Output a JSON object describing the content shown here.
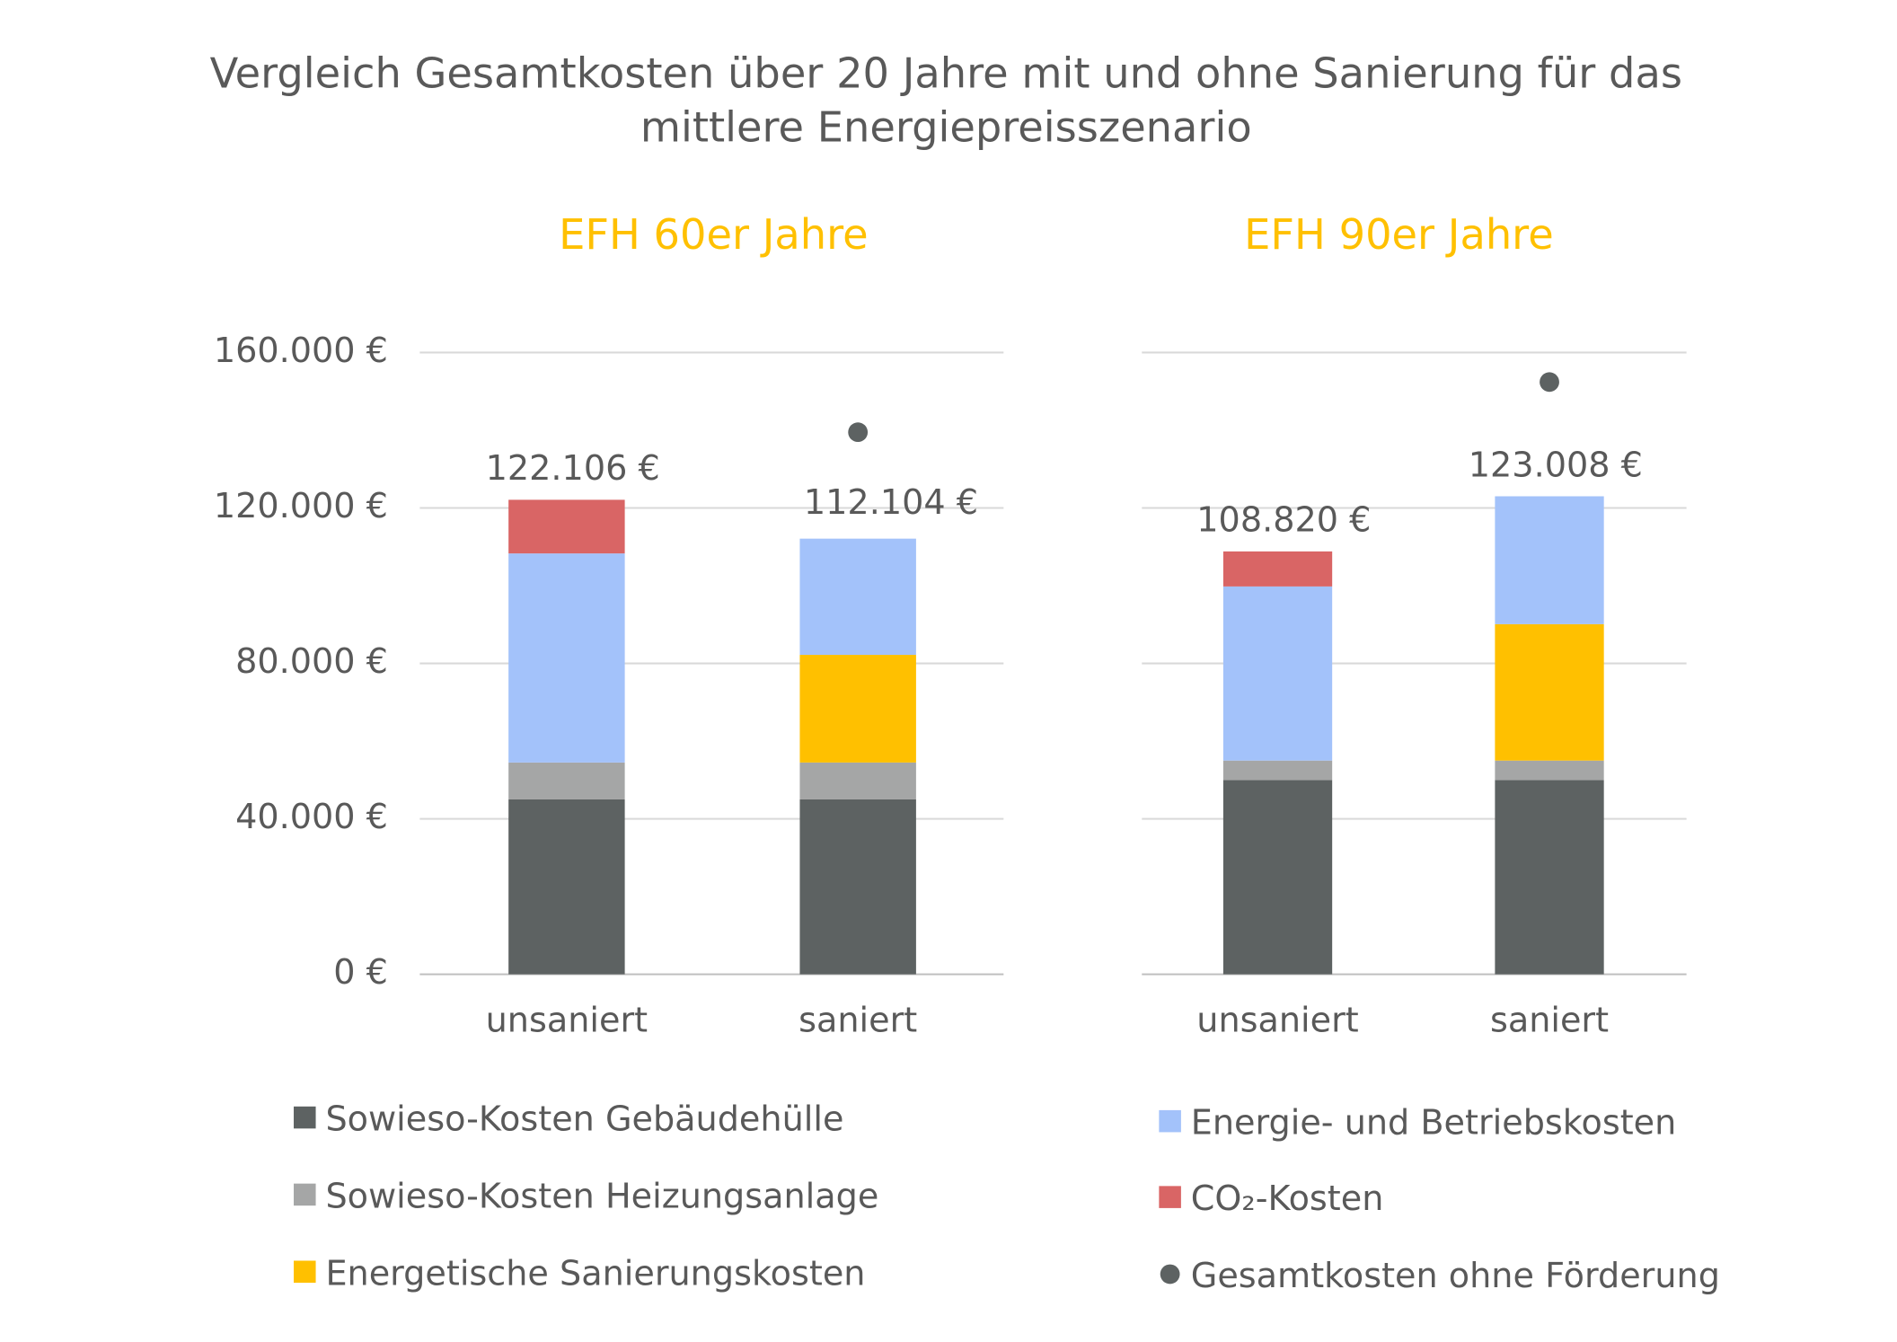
{
  "title": "Vergleich Gesamtkosten über 20 Jahre mit und ohne Sanierung für das mittlere Energiepreisszenario",
  "chart_data": [
    {
      "type": "bar",
      "stacked": true,
      "title": "EFH 60er Jahre",
      "categories": [
        "unsaniert",
        "saniert"
      ],
      "series": [
        {
          "name": "Sowieso-Kosten Gebäudehülle",
          "color": "#5d6262",
          "values": [
            45000,
            45000
          ]
        },
        {
          "name": "Sowieso-Kosten Heizungsanlage",
          "color": "#a5a6a6",
          "values": [
            9500,
            9500
          ]
        },
        {
          "name": "Energetische Sanierungskosten",
          "color": "#ffc000",
          "values": [
            null,
            27700
          ]
        },
        {
          "name": "Energie- und Betriebskosten",
          "color": "#a3c2fa",
          "values": [
            53800,
            29904
          ]
        },
        {
          "name": "CO₂-Kosten",
          "color": "#d96565",
          "values": [
            13806,
            null
          ]
        },
        {
          "name": "Gesamtkosten ohne Förderung",
          "color": "#5d6262",
          "type": "scatter",
          "values": [
            null,
            139500
          ]
        }
      ],
      "totals": {
        "values": [
          122106,
          112104
        ],
        "value_labels": [
          "122.106 €",
          "112.104 €"
        ]
      },
      "ylim": [
        0,
        160000
      ],
      "yticks": [
        {
          "value": 0,
          "label": "0 €"
        },
        {
          "value": 40000,
          "label": "40.000 €"
        },
        {
          "value": 80000,
          "label": "80.000 €"
        },
        {
          "value": 120000,
          "label": "120.000 €"
        },
        {
          "value": 160000,
          "label": "160.000 €"
        }
      ],
      "grid": true
    },
    {
      "type": "bar",
      "stacked": true,
      "title": "EFH 90er Jahre",
      "categories": [
        "unsaniert",
        "saniert"
      ],
      "series": [
        {
          "name": "Sowieso-Kosten Gebäudehülle",
          "color": "#5d6262",
          "values": [
            50000,
            50000
          ]
        },
        {
          "name": "Sowieso-Kosten Heizungsanlage",
          "color": "#a5a6a6",
          "values": [
            5000,
            5000
          ]
        },
        {
          "name": "Energetische Sanierungskosten",
          "color": "#ffc000",
          "values": [
            null,
            35100
          ]
        },
        {
          "name": "Energie- und Betriebskosten",
          "color": "#a3c2fa",
          "values": [
            44800,
            32908
          ]
        },
        {
          "name": "CO₂-Kosten",
          "color": "#d96565",
          "values": [
            9020,
            null
          ]
        },
        {
          "name": "Gesamtkosten ohne Förderung",
          "color": "#5d6262",
          "type": "scatter",
          "values": [
            null,
            152400
          ]
        }
      ],
      "totals": {
        "values": [
          108820,
          123008
        ],
        "value_labels": [
          "108.820 €",
          "123.008 €"
        ]
      },
      "ylim": [
        0,
        160000
      ],
      "yticks": [
        0,
        40000,
        80000,
        120000,
        160000
      ],
      "grid": true
    }
  ]
}
